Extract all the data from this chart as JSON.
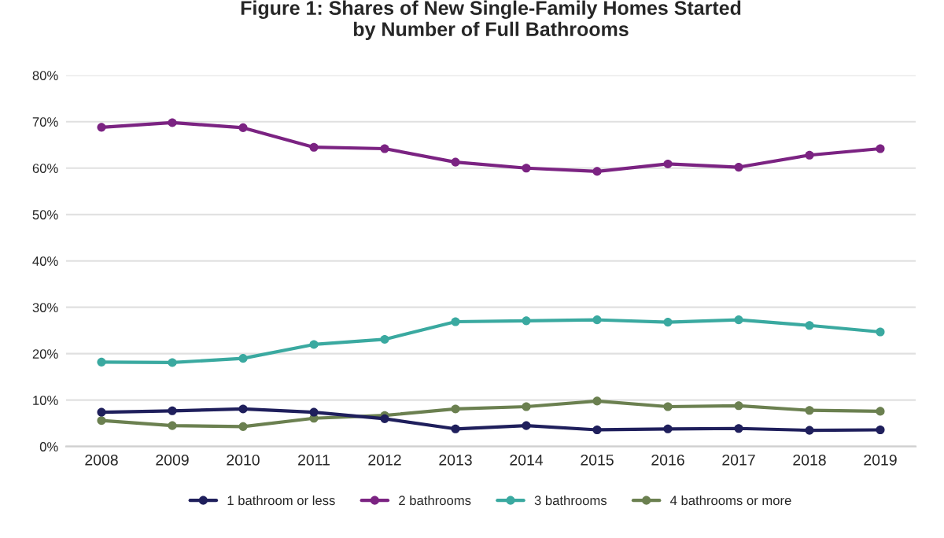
{
  "chart_data": {
    "type": "line",
    "title": "Figure 1: Shares of New Single-Family Homes Started\nby Number of Full Bathrooms",
    "categories": [
      "2008",
      "2009",
      "2010",
      "2011",
      "2012",
      "2013",
      "2014",
      "2015",
      "2016",
      "2017",
      "2018",
      "2019"
    ],
    "series": [
      {
        "name": "1 bathroom or less",
        "color": "#1f1f5c",
        "values": [
          7.4,
          7.7,
          8.1,
          7.4,
          6.0,
          3.8,
          4.5,
          3.6,
          3.8,
          3.9,
          3.5,
          3.6
        ]
      },
      {
        "name": "2 bathrooms",
        "color": "#7b2382",
        "values": [
          68.8,
          69.8,
          68.7,
          64.5,
          64.2,
          61.3,
          60.0,
          59.3,
          60.9,
          60.2,
          62.8,
          64.2
        ]
      },
      {
        "name": "3 bathrooms",
        "color": "#3aa9a0",
        "values": [
          18.2,
          18.1,
          19.0,
          22.0,
          23.1,
          26.9,
          27.1,
          27.3,
          26.8,
          27.3,
          26.1,
          24.7
        ]
      },
      {
        "name": "4 bathrooms or more",
        "color": "#6b8050",
        "values": [
          5.6,
          4.5,
          4.3,
          6.1,
          6.7,
          8.1,
          8.6,
          9.8,
          8.6,
          8.8,
          7.8,
          7.6
        ]
      }
    ],
    "ylim": [
      0,
      80
    ],
    "yticks": [
      {
        "value": 0,
        "label": "0%"
      },
      {
        "value": 10,
        "label": "10%"
      },
      {
        "value": 20,
        "label": "20%"
      },
      {
        "value": 30,
        "label": "30%"
      },
      {
        "value": 40,
        "label": "40%"
      },
      {
        "value": 50,
        "label": "50%"
      },
      {
        "value": 60,
        "label": "60%"
      },
      {
        "value": 70,
        "label": "70%"
      },
      {
        "value": 80,
        "label": "80%"
      }
    ],
    "grid": "y",
    "legend": "bottom",
    "marker": "circle",
    "line_style": "solid"
  }
}
